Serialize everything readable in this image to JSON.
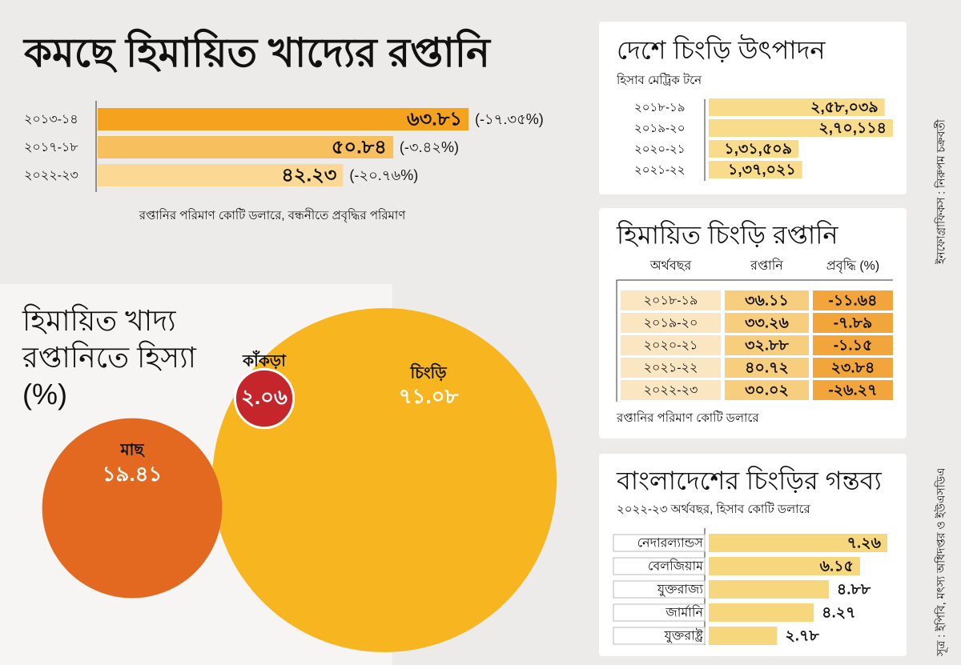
{
  "chart_data": [
    {
      "type": "hbar",
      "title": "কমছে হিমায়িত খাদ্যের রপ্তানি",
      "categories": [
        "২০১৩-১৪",
        "২০১৭-১৮",
        "২০২২-২৩"
      ],
      "values": [
        63.81,
        50.84,
        42.23
      ],
      "value_labels": [
        "৬৩.৮১",
        "৫০.৮৪",
        "৪২.২৩"
      ],
      "colors": [
        "#f5a21f",
        "#f8bf5e",
        "#fbd995"
      ],
      "growth": {
        "values": [
          -17.35,
          -3.42,
          -20.76
        ],
        "value_labels": [
          "(-১৭.৩৫%)",
          "(-৩.৪২%)",
          "(-২০.৭৬%)"
        ]
      },
      "note": "রপ্তানির পরিমাণ কোটি ডলারে, বন্ধনীতে প্রবৃদ্ধির পরিমাণ"
    },
    {
      "type": "hbar",
      "title": "দেশে চিংড়ি উৎপাদন",
      "subtitle": "হিসাব মেট্রিক টনে",
      "categories": [
        "২০১৮-১৯",
        "২০১৯-২০",
        "২০২০-২১",
        "২০২১-২২"
      ],
      "values": [
        258039,
        270114,
        131509,
        137021
      ],
      "value_labels": [
        "২,৫৮,০৩৯",
        "২,৭০,১১৪",
        "১,৩১,৫০৯",
        "১,৩৭,০২১"
      ],
      "color": "#f8dc8c"
    },
    {
      "type": "table",
      "title": "হিমায়িত চিংড়ি রপ্তানি",
      "columns": [
        "অর্থবছর",
        "রপ্তানি",
        "প্রবৃদ্ধি (%)"
      ],
      "categories": [
        "২০১৮-১৯",
        "২০১৯-২০",
        "২০২০-২১",
        "২০২১-২২",
        "২০২২-২৩"
      ],
      "series": [
        {
          "name": "রপ্তানি",
          "color": "#f7cd7e",
          "values": [
            36.11,
            33.26,
            32.88,
            40.72,
            30.02
          ],
          "value_labels": [
            "৩৬.১১",
            "৩৩.২৬",
            "৩২.৮৮",
            "৪০.৭২",
            "৩০.০২"
          ]
        },
        {
          "name": "প্রবৃদ্ধি (%)",
          "color": "#f2a53a",
          "values": [
            -11.64,
            -7.89,
            -1.15,
            23.84,
            -26.27
          ],
          "value_labels": [
            "-১১.৬৪",
            "-৭.৮৯",
            "-১.১৫",
            "২৩.৮৪",
            "-২৬.২৭"
          ]
        }
      ],
      "category_color": "#fbe6c2",
      "note": "রপ্তানির পরিমাণ কোটি ডলারে"
    },
    {
      "type": "bubble",
      "title": "হিমায়িত খাদ্য রপ্তানিতে হিস্যা (%)",
      "categories": [
        "চিংড়ি",
        "মাছ",
        "কাঁকড়া"
      ],
      "values": [
        71.08,
        19.41,
        2.06
      ],
      "value_labels": [
        "৭১.০৮",
        "১৯.৪১",
        "২.০৬"
      ],
      "colors": [
        "#f7b520",
        "#e2691f",
        "#c4262c"
      ]
    },
    {
      "type": "hbar",
      "title": "বাংলাদেশের চিংড়ির গন্তব্য",
      "subtitle": "২০২২-২৩ অর্থবছর, হিসাব কোটি ডলারে",
      "categories": [
        "নেদারল্যান্ডস",
        "বেলজিয়াম",
        "যুক্তরাজ্য",
        "জার্মানি",
        "যুক্তরাষ্ট্র"
      ],
      "values": [
        7.26,
        6.15,
        4.88,
        4.27,
        2.78
      ],
      "value_labels": [
        "৭.২৬",
        "৬.১৫",
        "৪.৮৮",
        "৪.২৭",
        "২.৭৮"
      ],
      "color": "#f6d77e"
    }
  ],
  "source": "সূত্র : ইপিবি, মৎস্য অধিদপ্তর ও ইউএসডিএ",
  "credit": "ইনফোগ্রাফিকস : নিরুপম চক্রবর্তী"
}
